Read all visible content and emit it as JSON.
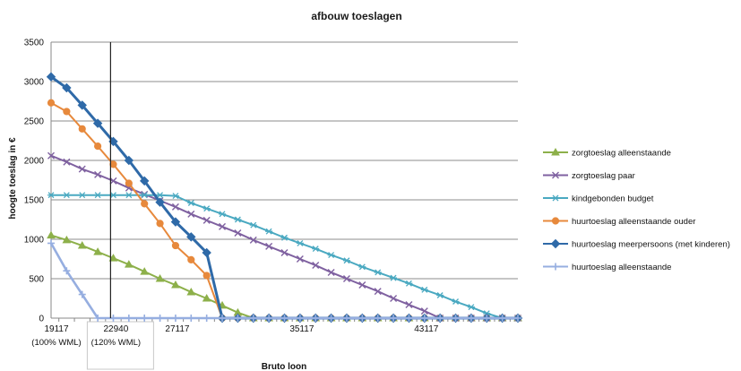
{
  "chart_data": {
    "type": "line",
    "title": "afbouw toeslagen",
    "xlabel": "Bruto loon",
    "ylabel": "hoogte toeslag in €",
    "ylim": [
      0,
      3500
    ],
    "yticks": [
      0,
      500,
      1000,
      1500,
      2000,
      2500,
      3000,
      3500
    ],
    "grid": "horizontal",
    "legend_position": "right",
    "x_step": 1000,
    "x_start": 19117,
    "x_count": 31,
    "x_tick_labels": [
      {
        "x": 19117,
        "label": "19117",
        "sublabel": "(100% WML)"
      },
      {
        "x": 22940,
        "label": "22940",
        "sublabel": "(120% WML)"
      },
      {
        "x": 27117,
        "label": "27117",
        "sublabel": ""
      },
      {
        "x": 35117,
        "label": "35117",
        "sublabel": ""
      },
      {
        "x": 43117,
        "label": "43117",
        "sublabel": ""
      }
    ],
    "reference_line_x": 22940,
    "series": [
      {
        "name": "zorgtoeslag alleenstaande",
        "color": "#8db04a",
        "marker": "triangle",
        "values": [
          1050,
          990,
          920,
          840,
          760,
          680,
          590,
          500,
          420,
          330,
          250,
          160,
          70,
          0,
          0,
          0,
          0,
          0,
          0,
          0,
          0,
          0,
          0,
          0,
          0,
          0,
          0,
          0,
          0,
          0,
          0
        ]
      },
      {
        "name": "zorgtoeslag paar",
        "color": "#7f61a0",
        "marker": "x",
        "values": [
          2060,
          1980,
          1890,
          1820,
          1740,
          1650,
          1570,
          1490,
          1410,
          1320,
          1240,
          1160,
          1080,
          990,
          910,
          830,
          750,
          670,
          580,
          500,
          420,
          340,
          250,
          170,
          90,
          0,
          0,
          0,
          0,
          0,
          0
        ]
      },
      {
        "name": "kindgebonden budget",
        "color": "#4aa9c1",
        "marker": "star",
        "values": [
          1560,
          1560,
          1560,
          1560,
          1560,
          1560,
          1560,
          1560,
          1550,
          1460,
          1390,
          1320,
          1250,
          1180,
          1100,
          1020,
          950,
          880,
          800,
          730,
          650,
          580,
          510,
          440,
          360,
          290,
          210,
          140,
          60,
          0,
          0
        ]
      },
      {
        "name": "huurtoeslag alleenstaande ouder",
        "color": "#e7893c",
        "marker": "circle",
        "values": [
          2730,
          2620,
          2400,
          2180,
          1950,
          1710,
          1450,
          1200,
          920,
          740,
          540,
          0,
          0,
          0,
          0,
          0,
          0,
          0,
          0,
          0,
          0,
          0,
          0,
          0,
          0,
          0,
          0,
          0,
          0,
          0,
          0
        ]
      },
      {
        "name": "huurtoeslag meerpersoons (met kinderen)",
        "color": "#2f6aa8",
        "marker": "diamond",
        "values": [
          3060,
          2920,
          2700,
          2470,
          2240,
          2000,
          1740,
          1470,
          1220,
          1030,
          830,
          0,
          0,
          0,
          0,
          0,
          0,
          0,
          0,
          0,
          0,
          0,
          0,
          0,
          0,
          0,
          0,
          0,
          0,
          0,
          0
        ]
      },
      {
        "name": "huurtoeslag alleenstaande",
        "color": "#96aee0",
        "marker": "plus",
        "values": [
          950,
          600,
          300,
          0,
          0,
          0,
          0,
          0,
          0,
          0,
          0,
          0,
          0,
          0,
          0,
          0,
          0,
          0,
          0,
          0,
          0,
          0,
          0,
          0,
          0,
          0,
          0,
          0,
          0,
          0,
          0
        ]
      }
    ]
  }
}
